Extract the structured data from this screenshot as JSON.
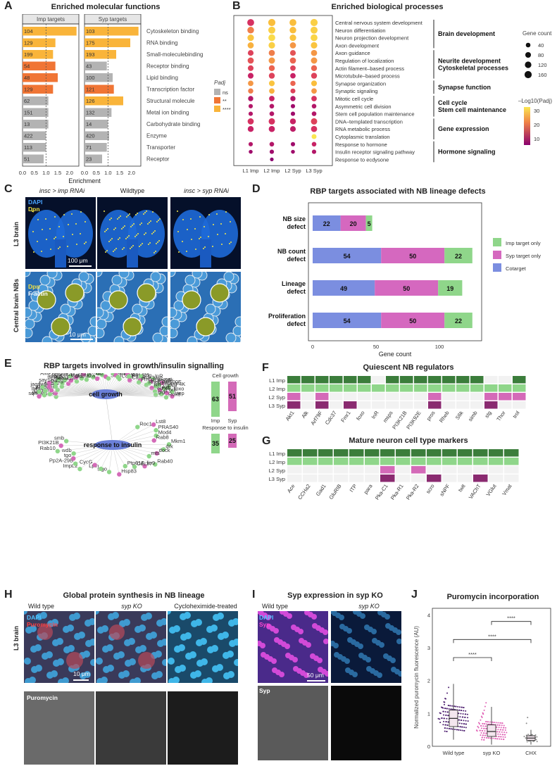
{
  "panels": {
    "A": {
      "letter": "A",
      "title": "Enriched molecular functions",
      "facets": [
        "Imp targets",
        "Syp targets"
      ],
      "xlabel": "Enrichment",
      "legend_title": "Padj",
      "legend": [
        "ns",
        "**",
        "****"
      ],
      "xticks": [
        "0.0",
        "0.5",
        "1.0",
        "1.5",
        "2.0"
      ]
    },
    "B": {
      "letter": "B",
      "title": "Enriched biological processes",
      "size_title": "Gene count",
      "size_levels": [
        "40",
        "80",
        "120",
        "160"
      ],
      "color_title": "–Log10(Padj)",
      "color_ticks": [
        "30",
        "20",
        "10"
      ]
    },
    "C": {
      "letter": "C",
      "col_titles": [
        "insc > imp RNAi",
        "Wildtype",
        "insc > syp RNAi"
      ],
      "row_titles": [
        "L3 brain",
        "Central brain NBs"
      ],
      "stain1": "DAPI",
      "stain2": "Dpn",
      "stain3": "Dpn",
      "stain4": "F-actin",
      "scale1": "100 μm",
      "scale2": "10 μm"
    },
    "D": {
      "letter": "D",
      "title": "RBP targets associated with NB lineage defects",
      "xlabel": "Gene count",
      "xticks": [
        "0",
        "50",
        "100"
      ],
      "legend": [
        "Imp target only",
        "Syp target only",
        "Cotarget"
      ]
    },
    "E": {
      "letter": "E",
      "title": "RBP targets involved in growth/insulin signalling",
      "hub1": "cell growth",
      "hub2": "response to insulin",
      "bar_title1": "Cell growth",
      "bar_title2": "Response to insulin",
      "bar_imp": "Imp",
      "bar_syp": "Syp",
      "bars": {
        "growth_imp": "63",
        "growth_syp": "51",
        "insulin_imp": "35",
        "insulin_syp": "25"
      },
      "growth_genes": [
        "Larp4B",
        "sqh",
        "path",
        "tsr",
        "Dscam1",
        "lbf",
        "Abl",
        "Rho1",
        "wnd",
        "jagn",
        "fwp",
        "Mts",
        "Rac2",
        "say",
        "Sh",
        "pan",
        "Atg1",
        "arm",
        "Rab5",
        "Rab11",
        "Sema1a",
        "AMPKalpha",
        "CG9328",
        "Mnt",
        "chic",
        "Nrx",
        "Nf1",
        "lft",
        "Sema2a",
        "bin",
        "Vang",
        "kuz",
        "Strip",
        "Vang",
        "shot",
        "Pka-C1",
        "Cdk4",
        "DAAM",
        "dup",
        "Rac1",
        "CadN",
        "rut",
        "sng",
        "Pdk1",
        "Fmr1",
        "InR",
        "Myc",
        "PI3K92E",
        "RhoGAP100F",
        "S6k",
        "Tl",
        "Rheb",
        "fkh",
        "PIF4K",
        "Thor",
        "Akt",
        "eIF4E",
        "foxo",
        "orb",
        "st",
        "gig",
        "step",
        "Rox8"
      ],
      "insulin_genes": [
        "Roc1a",
        "Lst8",
        "PRAS40",
        "Mod4",
        "Rab8",
        "Mkm1",
        "drk",
        "dock",
        "mts",
        "Rab40",
        "lin9",
        "Cdc37",
        "Ptp61F",
        "Hsp83",
        "slgo",
        "Lpin",
        "CycG",
        "ImpL2",
        "Pp2A-29B",
        "tgo",
        "wdb",
        "Rab10",
        "PI3K21B",
        "smb"
      ]
    },
    "F": {
      "letter": "F",
      "title": "Quiescent NB regulators",
      "rows": [
        "L1 Imp",
        "L2 Imp",
        "L2 Syp",
        "L3 Syp"
      ],
      "cols": [
        "Akt1",
        "Alk",
        "Arf79F",
        "Cdc37",
        "Fmr1",
        "foxo",
        "InR",
        "msps",
        "PI3K21B",
        "PI3K92E",
        "pros",
        "Rheb",
        "S6k",
        "simb",
        "stg",
        "Thor",
        "trol"
      ]
    },
    "G": {
      "letter": "G",
      "title": "Mature neuron cell type markers",
      "rows": [
        "L1 Imp",
        "L2 Imp",
        "L2 Syp",
        "L3 Syp"
      ],
      "cols": [
        "Ace",
        "CCHa2",
        "Gad1",
        "GluRIB",
        "ITP",
        "para",
        "Pka-C1",
        "Pka-R1",
        "Pka-R2",
        "scro",
        "sNPF",
        "twit",
        "VAChT",
        "VGlut",
        "Vmat"
      ]
    },
    "H": {
      "letter": "H",
      "title": "Global protein synthesis in NB lineage",
      "cols": [
        "Wild type",
        "syp KO",
        "Cycloheximide-treated"
      ],
      "row": "L3 brain",
      "stain1": "DAPI",
      "stain2": "Puromycin",
      "stain3": "Puromycin",
      "scale": "10 μm"
    },
    "I": {
      "letter": "I",
      "title": "Syp expression in syp KO",
      "cols": [
        "Wild type",
        "syp KO"
      ],
      "stain1": "DAPI",
      "stain2": "Syp",
      "stain3": "Syp",
      "scale": "50 μm"
    },
    "J": {
      "letter": "J",
      "title": "Puromycin incorporation",
      "ylabel": "Normalized puromycin fluorescence (AU)",
      "yticks": [
        "0",
        "1",
        "2",
        "3",
        "4"
      ],
      "groups": [
        "Wild type",
        "syp KO",
        "CHX"
      ],
      "sig": [
        "****",
        "****",
        "****"
      ]
    }
  },
  "chart_data": [
    {
      "type": "bar",
      "panel": "A",
      "title": "Enriched molecular functions",
      "xlabel": "Enrichment",
      "categories": [
        "Cytoskeleton binding",
        "RNA binding",
        "Small-moleculebinding",
        "Receptor binding",
        "Lipid binding",
        "Transcription factor",
        "Structural molecule",
        "Metal ion binding",
        "Carbohydrate binding",
        "Enzyme",
        "Transporter",
        "Receptor"
      ],
      "series": [
        {
          "name": "Imp targets",
          "values": [
            2.3,
            1.4,
            1.3,
            1.4,
            1.5,
            1.3,
            1.1,
            1.1,
            1.1,
            1.0,
            1.0,
            0.9
          ],
          "counts": [
            "104",
            "129",
            "199",
            "54",
            "48",
            "129",
            "62",
            "151",
            "13",
            "422",
            "113",
            "51"
          ],
          "padj": [
            "****",
            "****",
            "****",
            "**",
            "**",
            "**",
            "ns",
            "ns",
            "ns",
            "ns",
            "ns",
            "ns"
          ]
        },
        {
          "name": "Syp targets",
          "values": [
            2.3,
            1.95,
            1.35,
            0.95,
            1.2,
            1.25,
            1.65,
            1.15,
            1.0,
            1.05,
            0.95,
            0.75
          ],
          "counts": [
            "103",
            "175",
            "193",
            "43",
            "100",
            "121",
            "126",
            "132",
            "14",
            "420",
            "71",
            "23"
          ],
          "padj": [
            "****",
            "****",
            "****",
            "ns",
            "ns",
            "**",
            "****",
            "ns",
            "ns",
            "ns",
            "ns",
            "ns"
          ]
        }
      ],
      "xlim": [
        0,
        2.4
      ],
      "reference_line": 1.0,
      "colors": {
        "ns": "#b3b3b3",
        "**": "#f07535",
        "****": "#f9b43a"
      }
    },
    {
      "type": "scatter",
      "panel": "B",
      "title": "Enriched biological processes",
      "x": [
        "L1 Imp",
        "L2 Imp",
        "L2 Syp",
        "L3 Syp"
      ],
      "terms": [
        "Central nervous system development",
        "Neuron differentiation",
        "Neuron projection development",
        "Axon development",
        "Axon guidance",
        "Regulation of localization",
        "Actin filament–based process",
        "Microtubule–based process",
        "Synapse organization",
        "Synaptic signaling",
        "Mitotic cell cycle",
        "Asymmetric cell division",
        "Stem cell population maintenance",
        "DNA–templated transcription",
        "RNA metabolic process",
        "Cytoplasmic translation",
        "Response to hormone",
        "Insulin receptor signaling pathway",
        "Response to ecdysone"
      ],
      "groups": [
        {
          "label": "Brain development",
          "rows": [
            0,
            3
          ]
        },
        {
          "label": "Neurite development Cytoskeletal processes",
          "rows": [
            4,
            7
          ]
        },
        {
          "label": "Synapse function",
          "rows": [
            8,
            9
          ]
        },
        {
          "label": "Cell cycle Stem cell maintenance",
          "rows": [
            10,
            12
          ]
        },
        {
          "label": "Gene expression",
          "rows": [
            13,
            15
          ]
        },
        {
          "label": "Hormone signaling",
          "rows": [
            16,
            18
          ]
        }
      ],
      "neglog10_padj": [
        [
          12,
          25,
          25,
          28
        ],
        [
          20,
          28,
          25,
          28
        ],
        [
          26,
          30,
          26,
          29
        ],
        [
          24,
          28,
          22,
          26
        ],
        [
          14,
          20,
          16,
          22
        ],
        [
          16,
          22,
          18,
          22
        ],
        [
          14,
          18,
          14,
          18
        ],
        [
          10,
          14,
          10,
          14
        ],
        [
          22,
          26,
          18,
          25
        ],
        [
          20,
          24,
          14,
          22
        ],
        [
          8,
          10,
          8,
          12
        ],
        [
          8,
          8,
          6,
          8
        ],
        [
          8,
          8,
          6,
          8
        ],
        [
          12,
          12,
          10,
          14
        ],
        [
          10,
          10,
          9,
          12
        ],
        [
          null,
          null,
          null,
          32
        ],
        [
          8,
          8,
          6,
          10
        ],
        [
          6,
          6,
          6,
          8
        ],
        [
          null,
          4,
          null,
          null
        ]
      ],
      "gene_count": [
        [
          140,
          160,
          140,
          160
        ],
        [
          130,
          150,
          130,
          150
        ],
        [
          120,
          140,
          120,
          140
        ],
        [
          100,
          120,
          100,
          120
        ],
        [
          80,
          100,
          80,
          100
        ],
        [
          100,
          110,
          100,
          110
        ],
        [
          80,
          90,
          70,
          90
        ],
        [
          80,
          90,
          70,
          90
        ],
        [
          70,
          80,
          60,
          80
        ],
        [
          60,
          70,
          50,
          70
        ],
        [
          60,
          70,
          60,
          70
        ],
        [
          30,
          40,
          30,
          40
        ],
        [
          30,
          40,
          30,
          40
        ],
        [
          100,
          110,
          90,
          110
        ],
        [
          90,
          100,
          80,
          100
        ],
        [
          null,
          null,
          null,
          50
        ],
        [
          30,
          40,
          30,
          40
        ],
        [
          20,
          30,
          20,
          30
        ],
        [
          null,
          15,
          null,
          null
        ]
      ],
      "color_range": [
        4,
        32
      ]
    },
    {
      "type": "bar",
      "panel": "D",
      "title": "RBP targets associated with NB lineage defects",
      "xlabel": "Gene count",
      "categories": [
        "NB size defect",
        "NB count defect",
        "Lineage defect",
        "Proliferation defect"
      ],
      "series": [
        {
          "name": "Cotarget",
          "values": [
            22,
            54,
            49,
            54
          ]
        },
        {
          "name": "Syp target only",
          "values": [
            20,
            50,
            50,
            50
          ]
        },
        {
          "name": "Imp target only",
          "values": [
            5,
            22,
            19,
            22
          ]
        }
      ],
      "colors": {
        "Cotarget": "#7b8ee0",
        "Syp target only": "#d568bf",
        "Imp target only": "#8fd68a"
      },
      "xlim": [
        0,
        130
      ]
    },
    {
      "type": "heatmap",
      "panel": "F",
      "title": "Quiescent NB regulators",
      "rows": [
        "L1 Imp",
        "L2 Imp",
        "L2 Syp",
        "L3 Syp"
      ],
      "cols": [
        "Akt1",
        "Alk",
        "Arf79F",
        "Cdc37",
        "Fmr1",
        "foxo",
        "InR",
        "msps",
        "PI3K21B",
        "PI3K92E",
        "pros",
        "Rheb",
        "S6k",
        "simb",
        "stg",
        "Thor",
        "trol"
      ],
      "values": [
        [
          1,
          1,
          1,
          1,
          1,
          1,
          0,
          1,
          1,
          1,
          1,
          1,
          1,
          1,
          0,
          0,
          1
        ],
        [
          1,
          1,
          1,
          1,
          1,
          1,
          1,
          1,
          1,
          1,
          1,
          1,
          1,
          1,
          1,
          1,
          1
        ],
        [
          1,
          0,
          1,
          0,
          0,
          0,
          0,
          0,
          0,
          0,
          1,
          0,
          0,
          0,
          1,
          1,
          1
        ],
        [
          1,
          0,
          1,
          0,
          1,
          0,
          0,
          0,
          0,
          0,
          1,
          0,
          0,
          0,
          1,
          0,
          0
        ]
      ]
    },
    {
      "type": "heatmap",
      "panel": "G",
      "title": "Mature neuron cell type markers",
      "rows": [
        "L1 Imp",
        "L2 Imp",
        "L2 Syp",
        "L3 Syp"
      ],
      "cols": [
        "Ace",
        "CCHa2",
        "Gad1",
        "GluRIB",
        "ITP",
        "para",
        "Pka-C1",
        "Pka-R1",
        "Pka-R2",
        "scro",
        "sNPF",
        "twit",
        "VAChT",
        "VGlut",
        "Vmat"
      ],
      "values": [
        [
          1,
          1,
          1,
          1,
          1,
          1,
          1,
          1,
          1,
          1,
          1,
          1,
          1,
          1,
          1
        ],
        [
          1,
          1,
          1,
          1,
          1,
          1,
          1,
          1,
          1,
          1,
          1,
          1,
          1,
          1,
          1
        ],
        [
          0,
          0,
          0,
          0,
          0,
          0,
          1,
          0,
          1,
          0,
          0,
          0,
          0,
          0,
          0
        ],
        [
          0,
          0,
          0,
          0,
          0,
          0,
          1,
          0,
          0,
          1,
          0,
          0,
          1,
          0,
          0
        ]
      ]
    },
    {
      "type": "scatter",
      "panel": "J",
      "title": "Puromycin incorporation",
      "ylabel": "Normalized puromycin fluorescence (AU)",
      "categories": [
        "Wild type",
        "syp KO",
        "CHX"
      ],
      "median": [
        0.85,
        0.45,
        0.25
      ],
      "q1": [
        0.6,
        0.3,
        0.18
      ],
      "q3": [
        1.1,
        0.65,
        0.32
      ],
      "whisker_low": [
        0.2,
        0.05,
        0.05
      ],
      "whisker_high": [
        1.9,
        1.2,
        0.5
      ],
      "ylim": [
        0,
        4.2
      ],
      "significance": [
        {
          "pair": [
            "Wild type",
            "syp KO"
          ],
          "label": "****"
        },
        {
          "pair": [
            "Wild type",
            "CHX"
          ],
          "label": "****"
        },
        {
          "pair": [
            "syp KO",
            "CHX"
          ],
          "label": "****"
        }
      ],
      "colors": {
        "Wild type": "#4b1c6e",
        "syp KO": "#e060b5",
        "CHX": "#8a8a8a"
      }
    }
  ]
}
